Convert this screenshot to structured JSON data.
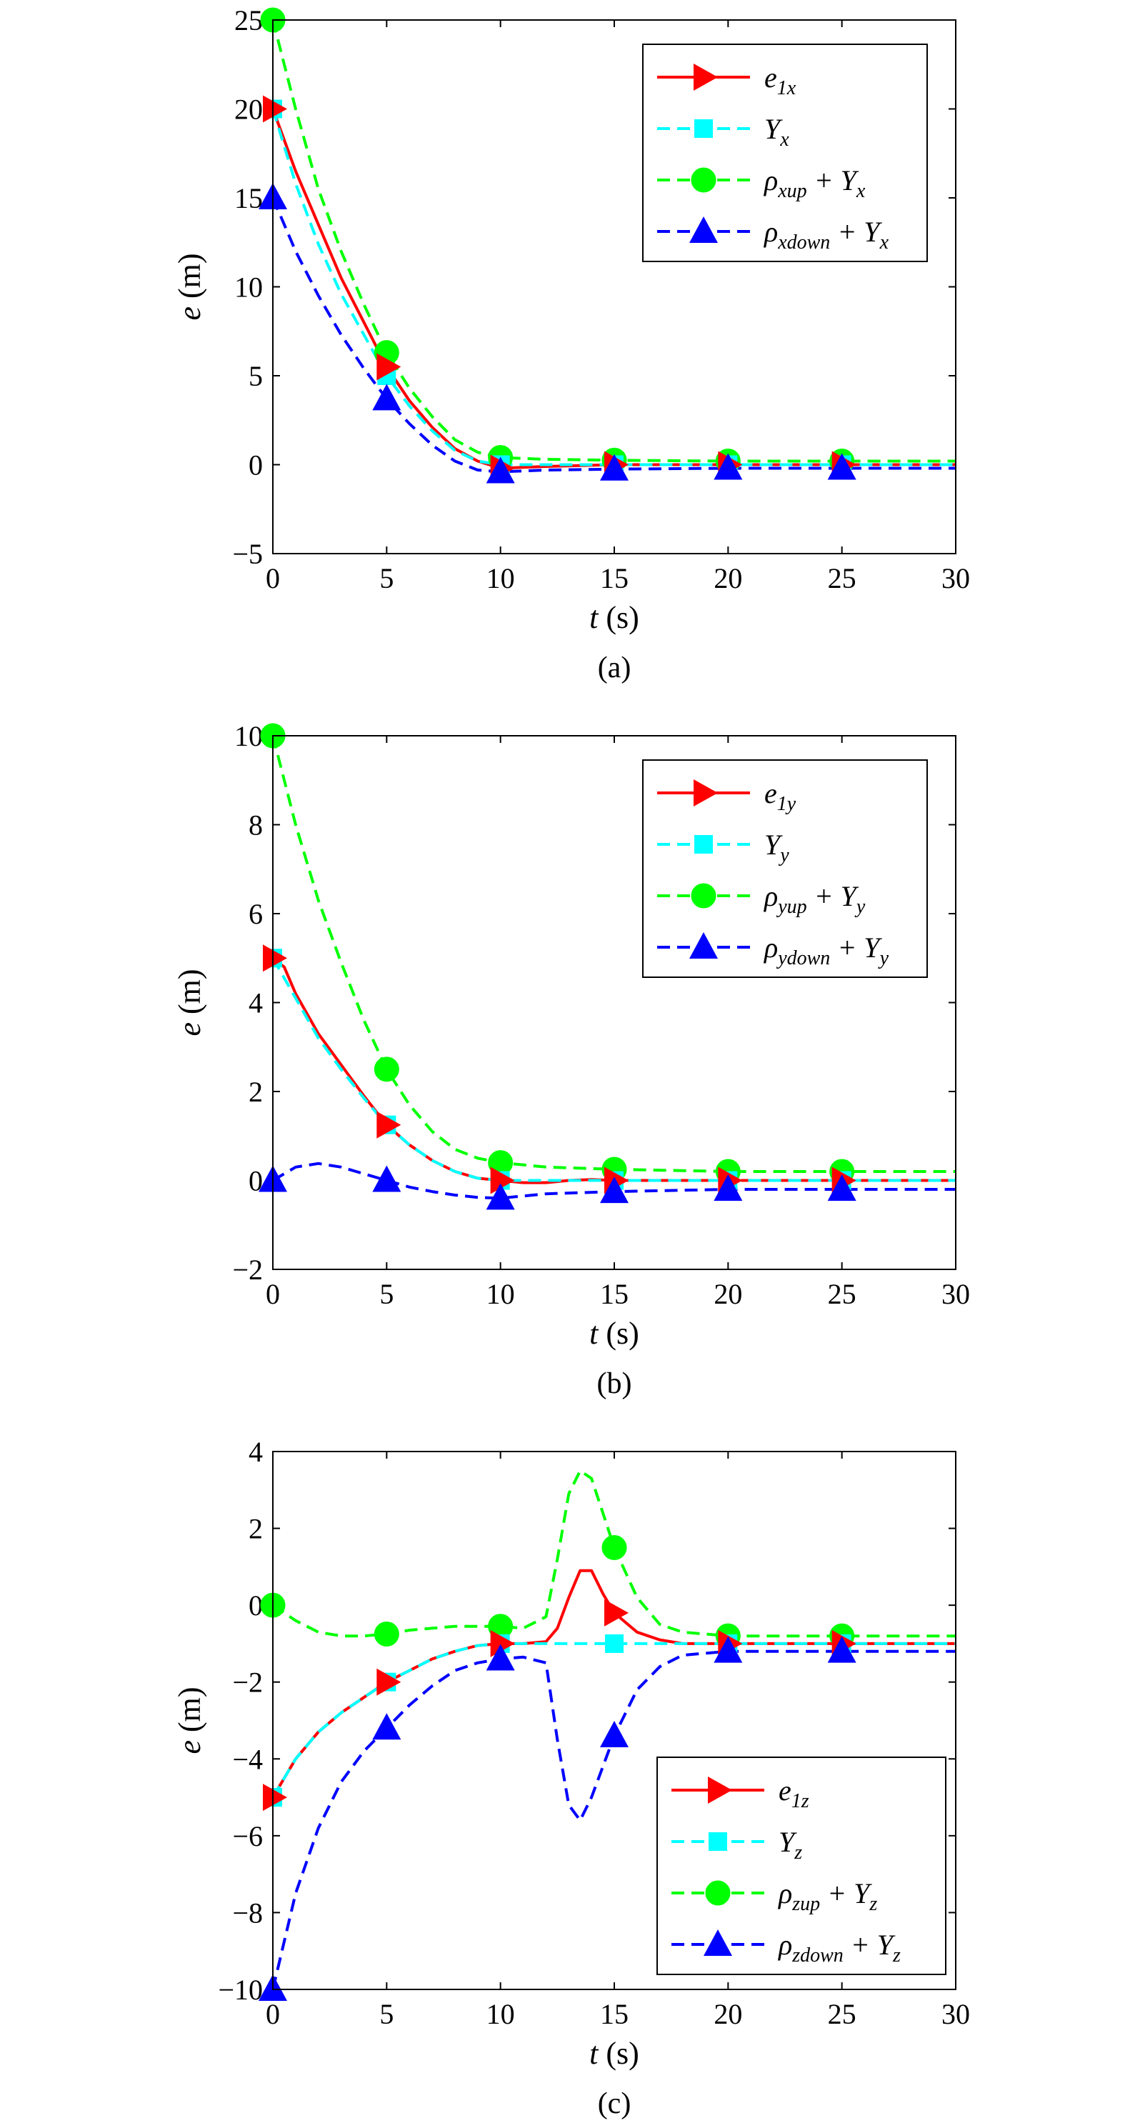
{
  "chart_data": [
    {
      "type": "line",
      "caption": "(a)",
      "xlabel": {
        "var": "t",
        "unit": " (s)"
      },
      "ylabel": {
        "var": "e",
        "unit": " (m)"
      },
      "xlim": [
        0,
        30
      ],
      "ylim": [
        -5,
        25
      ],
      "xticks": [
        0,
        5,
        10,
        15,
        20,
        25,
        30
      ],
      "yticks": [
        -5,
        0,
        5,
        10,
        15,
        20,
        25
      ],
      "ytick_labels": [
        "−5",
        "0",
        "5",
        "10",
        "15",
        "20",
        "25"
      ],
      "grid": false,
      "legend_position": "top-right",
      "series": [
        {
          "key": "e1",
          "legend": {
            "base": "e",
            "sub": "1x",
            "tail": ""
          },
          "color": "#ff0000",
          "dash": "solid",
          "marker": "triangle-right",
          "x": [
            0,
            1,
            2,
            3,
            4,
            5,
            6,
            7,
            8,
            9,
            10,
            12,
            15,
            20,
            25,
            30
          ],
          "y": [
            20,
            16.5,
            13.5,
            10.5,
            8,
            5.5,
            3.6,
            2.1,
            0.9,
            0.2,
            -0.2,
            -0.1,
            0,
            0,
            0,
            0
          ],
          "markers_x": [
            0,
            5,
            10,
            15,
            20,
            25
          ]
        },
        {
          "key": "Y",
          "legend": {
            "base": "Y",
            "sub": "x",
            "tail": ""
          },
          "color": "#00ffff",
          "dash": "dashed",
          "marker": "square",
          "x": [
            0,
            1,
            2,
            3,
            4,
            5,
            6,
            7,
            8,
            9,
            10,
            12,
            15,
            20,
            25,
            30
          ],
          "y": [
            20,
            15.8,
            12.4,
            9.6,
            7.3,
            5.0,
            3.3,
            1.9,
            0.8,
            0.2,
            0,
            0,
            0,
            0,
            0,
            0
          ],
          "markers_x": [
            0,
            5,
            10,
            15,
            20,
            25
          ]
        },
        {
          "key": "up",
          "legend": {
            "base": "ρ",
            "sub": "xup",
            "tail": " + Y",
            "tail_sub": "x"
          },
          "color": "#00ff00",
          "dash": "dashed",
          "marker": "circle",
          "x": [
            0,
            1,
            2,
            3,
            4,
            5,
            6,
            7,
            8,
            9,
            10,
            12,
            15,
            20,
            25,
            30
          ],
          "y": [
            25,
            20,
            15.5,
            12,
            9,
            6.3,
            4.3,
            2.7,
            1.4,
            0.7,
            0.4,
            0.3,
            0.25,
            0.2,
            0.2,
            0.2
          ],
          "markers_x": [
            0,
            5,
            10,
            15,
            20,
            25
          ]
        },
        {
          "key": "down",
          "legend": {
            "base": "ρ",
            "sub": "xdown",
            "tail": " + Y",
            "tail_sub": "x"
          },
          "color": "#0000ff",
          "dash": "dashed",
          "marker": "triangle-up",
          "x": [
            0,
            1,
            2,
            3,
            4,
            5,
            6,
            7,
            8,
            9,
            10,
            12,
            15,
            20,
            25,
            30
          ],
          "y": [
            15,
            12,
            9.5,
            7.3,
            5.4,
            3.7,
            2.3,
            1.1,
            0.2,
            -0.3,
            -0.4,
            -0.3,
            -0.25,
            -0.2,
            -0.2,
            -0.2
          ],
          "markers_x": [
            0,
            5,
            10,
            15,
            20,
            25
          ]
        }
      ]
    },
    {
      "type": "line",
      "caption": "(b)",
      "xlabel": {
        "var": "t",
        "unit": " (s)"
      },
      "ylabel": {
        "var": "e",
        "unit": " (m)"
      },
      "xlim": [
        0,
        30
      ],
      "ylim": [
        -2,
        10
      ],
      "xticks": [
        0,
        5,
        10,
        15,
        20,
        25,
        30
      ],
      "yticks": [
        -2,
        0,
        2,
        4,
        6,
        8,
        10
      ],
      "ytick_labels": [
        "−2",
        "0",
        "2",
        "4",
        "6",
        "8",
        "10"
      ],
      "grid": false,
      "legend_position": "top-right",
      "series": [
        {
          "key": "e1",
          "legend": {
            "base": "e",
            "sub": "1y",
            "tail": ""
          },
          "color": "#ff0000",
          "dash": "solid",
          "marker": "triangle-right",
          "x": [
            0,
            0.5,
            1,
            2,
            3,
            4,
            5,
            6,
            7,
            8,
            9,
            10,
            11,
            12,
            13,
            14,
            15,
            20,
            25,
            30
          ],
          "y": [
            5,
            4.8,
            4.2,
            3.3,
            2.6,
            1.9,
            1.25,
            0.8,
            0.45,
            0.2,
            0.05,
            0,
            -0.05,
            -0.05,
            0,
            0.02,
            0,
            0,
            0,
            0
          ],
          "markers_x": [
            0,
            5,
            10,
            15,
            20,
            25
          ]
        },
        {
          "key": "Y",
          "legend": {
            "base": "Y",
            "sub": "y",
            "tail": ""
          },
          "color": "#00ffff",
          "dash": "dashed",
          "marker": "square",
          "x": [
            0,
            1,
            2,
            3,
            4,
            5,
            6,
            7,
            8,
            9,
            10,
            12,
            15,
            20,
            25,
            30
          ],
          "y": [
            5,
            4.1,
            3.2,
            2.5,
            1.85,
            1.25,
            0.8,
            0.45,
            0.2,
            0.05,
            0,
            0,
            0,
            0,
            0,
            0
          ],
          "markers_x": [
            0,
            5,
            10,
            15,
            20,
            25
          ]
        },
        {
          "key": "up",
          "legend": {
            "base": "ρ",
            "sub": "yup",
            "tail": " + Y",
            "tail_sub": "y"
          },
          "color": "#00ff00",
          "dash": "dashed",
          "marker": "circle",
          "x": [
            0,
            1,
            2,
            3,
            4,
            5,
            6,
            7,
            8,
            9,
            10,
            12,
            15,
            20,
            25,
            30
          ],
          "y": [
            10,
            8,
            6.3,
            4.9,
            3.6,
            2.5,
            1.7,
            1.1,
            0.7,
            0.5,
            0.4,
            0.3,
            0.25,
            0.2,
            0.2,
            0.2
          ],
          "markers_x": [
            0,
            5,
            10,
            15,
            20,
            25
          ]
        },
        {
          "key": "down",
          "legend": {
            "base": "ρ",
            "sub": "ydown",
            "tail": " + Y",
            "tail_sub": "y"
          },
          "color": "#0000ff",
          "dash": "dashed",
          "marker": "triangle-up",
          "x": [
            0,
            1,
            2,
            3,
            4,
            5,
            6,
            7,
            8,
            9,
            10,
            12,
            15,
            20,
            25,
            30
          ],
          "y": [
            0,
            0.3,
            0.38,
            0.3,
            0.15,
            0,
            -0.15,
            -0.25,
            -0.33,
            -0.38,
            -0.4,
            -0.3,
            -0.25,
            -0.2,
            -0.2,
            -0.2
          ],
          "markers_x": [
            0,
            5,
            10,
            15,
            20,
            25
          ]
        }
      ]
    },
    {
      "type": "line",
      "caption": "(c)",
      "xlabel": {
        "var": "t",
        "unit": " (s)"
      },
      "ylabel": {
        "var": "e",
        "unit": " (m)"
      },
      "xlim": [
        0,
        30
      ],
      "ylim": [
        -10,
        4
      ],
      "xticks": [
        0,
        5,
        10,
        15,
        20,
        25,
        30
      ],
      "yticks": [
        -10,
        -8,
        -6,
        -4,
        -2,
        0,
        2,
        4
      ],
      "ytick_labels": [
        "−10",
        "−8",
        "−6",
        "−4",
        "−2",
        "0",
        "2",
        "4"
      ],
      "grid": false,
      "legend_position": "bottom-right",
      "series": [
        {
          "key": "e1",
          "legend": {
            "base": "e",
            "sub": "1z",
            "tail": ""
          },
          "color": "#ff0000",
          "dash": "solid",
          "marker": "triangle-right",
          "x": [
            0,
            1,
            2,
            3,
            4,
            5,
            6,
            7,
            8,
            9,
            10,
            11,
            12,
            12.5,
            13,
            13.5,
            14,
            14.5,
            15,
            16,
            17,
            18,
            20,
            25,
            30
          ],
          "y": [
            -5,
            -4,
            -3.3,
            -2.8,
            -2.4,
            -2,
            -1.7,
            -1.4,
            -1.2,
            -1.05,
            -1,
            -1,
            -0.95,
            -0.6,
            0.2,
            0.9,
            0.9,
            0.3,
            -0.2,
            -0.7,
            -0.9,
            -1,
            -1,
            -1,
            -1
          ],
          "markers_x": [
            0,
            5,
            10,
            15,
            20,
            25
          ]
        },
        {
          "key": "Y",
          "legend": {
            "base": "Y",
            "sub": "z",
            "tail": ""
          },
          "color": "#00ffff",
          "dash": "dashed",
          "marker": "square",
          "x": [
            0,
            1,
            2,
            3,
            4,
            5,
            6,
            7,
            8,
            9,
            10,
            12,
            15,
            20,
            25,
            30
          ],
          "y": [
            -5,
            -4,
            -3.3,
            -2.8,
            -2.4,
            -2,
            -1.7,
            -1.4,
            -1.2,
            -1.05,
            -1,
            -1,
            -1,
            -1,
            -1,
            -1
          ],
          "markers_x": [
            0,
            5,
            10,
            15,
            20,
            25
          ]
        },
        {
          "key": "up",
          "legend": {
            "base": "ρ",
            "sub": "zup",
            "tail": " + Y",
            "tail_sub": "z"
          },
          "color": "#00ff00",
          "dash": "dashed",
          "marker": "circle",
          "x": [
            0,
            1,
            2,
            3,
            4,
            5,
            6,
            7,
            8,
            9,
            10,
            11,
            12,
            12.5,
            13,
            13.5,
            14,
            15,
            16,
            17,
            18,
            20,
            25,
            30
          ],
          "y": [
            0,
            -0.4,
            -0.7,
            -0.8,
            -0.8,
            -0.75,
            -0.65,
            -0.6,
            -0.55,
            -0.55,
            -0.55,
            -0.6,
            -0.3,
            1.2,
            2.9,
            3.5,
            3.3,
            1.5,
            0.2,
            -0.5,
            -0.7,
            -0.8,
            -0.8,
            -0.8
          ],
          "markers_x": [
            0,
            5,
            10,
            15,
            20,
            25
          ]
        },
        {
          "key": "down",
          "legend": {
            "base": "ρ",
            "sub": "zdown",
            "tail": " + Y",
            "tail_sub": "z"
          },
          "color": "#0000ff",
          "dash": "dashed",
          "marker": "triangle-up",
          "x": [
            0,
            1,
            2,
            3,
            4,
            5,
            6,
            7,
            8,
            9,
            10,
            11,
            12,
            12.5,
            13,
            13.5,
            14,
            15,
            16,
            17,
            18,
            20,
            25,
            30
          ],
          "y": [
            -10,
            -7.5,
            -5.8,
            -4.6,
            -3.8,
            -3.2,
            -2.6,
            -2.1,
            -1.7,
            -1.5,
            -1.4,
            -1.35,
            -1.5,
            -3.5,
            -5.2,
            -5.6,
            -5.0,
            -3.4,
            -2.2,
            -1.6,
            -1.3,
            -1.2,
            -1.2,
            -1.2
          ],
          "markers_x": [
            0,
            5,
            10,
            15,
            20,
            25
          ]
        }
      ]
    }
  ]
}
